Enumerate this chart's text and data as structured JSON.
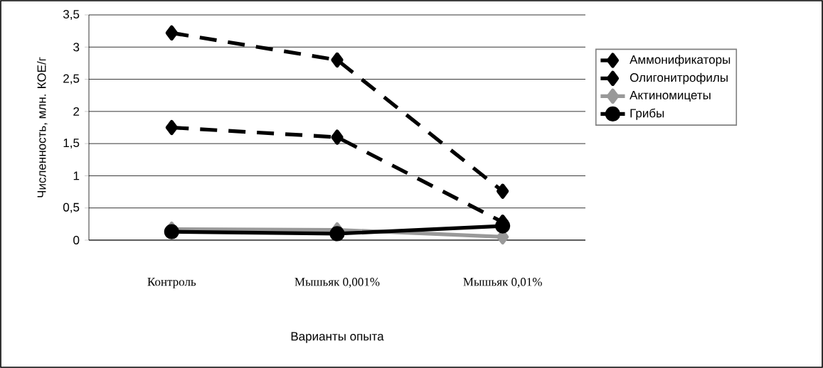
{
  "chart_data": {
    "type": "line",
    "xlabel": "Варианты опыта",
    "ylabel": "Численность, млн. КОЕ/г",
    "categories": [
      "Контроль",
      "Мышьяк 0,001%",
      "Мышьяк 0,01%"
    ],
    "series": [
      {
        "name": "Аммонификаторы",
        "color": "#000000",
        "values": [
          3.22,
          2.8,
          0.76
        ],
        "line_style": "dashed",
        "marker": "diamond"
      },
      {
        "name": "Олигонитрофилы",
        "color": "#000000",
        "values": [
          1.75,
          1.6,
          0.28
        ],
        "line_style": "dashed",
        "marker": "diamond"
      },
      {
        "name": "Актиномицеты",
        "color": "#999999",
        "values": [
          0.17,
          0.16,
          0.05
        ],
        "line_style": "solid",
        "marker": "diamond"
      },
      {
        "name": "Грибы",
        "color": "#000000",
        "values": [
          0.13,
          0.1,
          0.22
        ],
        "line_style": "solid",
        "marker": "circle"
      }
    ],
    "ylim": [
      0,
      3.5
    ],
    "yticks": [
      0,
      {
        "value": 0.5,
        "label": "0,5"
      },
      1,
      {
        "value": 1.5,
        "label": "1,5"
      },
      2,
      {
        "value": 2.5,
        "label": "2,5"
      },
      3,
      {
        "value": 3.5,
        "label": "3,5"
      }
    ],
    "grid": "y",
    "legend": "right"
  }
}
